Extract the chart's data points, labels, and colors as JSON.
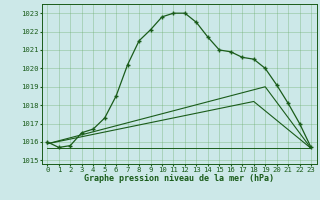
{
  "title": "Graphe pression niveau de la mer (hPa)",
  "background_color": "#cce8e8",
  "line_color": "#1a5c1a",
  "ylim": [
    1014.8,
    1023.5
  ],
  "yticks": [
    1015,
    1016,
    1017,
    1018,
    1019,
    1020,
    1021,
    1022,
    1023
  ],
  "x_ticks": [
    0,
    1,
    2,
    3,
    4,
    5,
    6,
    7,
    8,
    9,
    10,
    11,
    12,
    13,
    14,
    15,
    16,
    17,
    18,
    19,
    20,
    21,
    22,
    23
  ],
  "series1_x": [
    0,
    1,
    2,
    3,
    4,
    5,
    6,
    7,
    8,
    9,
    10,
    11,
    12,
    13,
    14,
    15,
    16,
    17,
    18,
    19,
    20,
    21,
    22,
    23
  ],
  "series1_y": [
    1016.0,
    1015.7,
    1015.8,
    1016.5,
    1016.7,
    1017.3,
    1018.5,
    1020.2,
    1021.5,
    1022.1,
    1022.8,
    1023.0,
    1023.0,
    1022.5,
    1021.7,
    1021.0,
    1020.9,
    1020.6,
    1020.5,
    1020.0,
    1019.1,
    1018.1,
    1017.0,
    1015.7
  ],
  "series2_x": [
    0,
    19,
    23
  ],
  "series2_y": [
    1015.9,
    1019.0,
    1015.65
  ],
  "series3_x": [
    0,
    18,
    23
  ],
  "series3_y": [
    1015.9,
    1018.2,
    1015.65
  ],
  "flat_y": 1015.65,
  "grid_color": "#66aa66",
  "title_fontsize": 6.0,
  "tick_fontsize": 5.2
}
